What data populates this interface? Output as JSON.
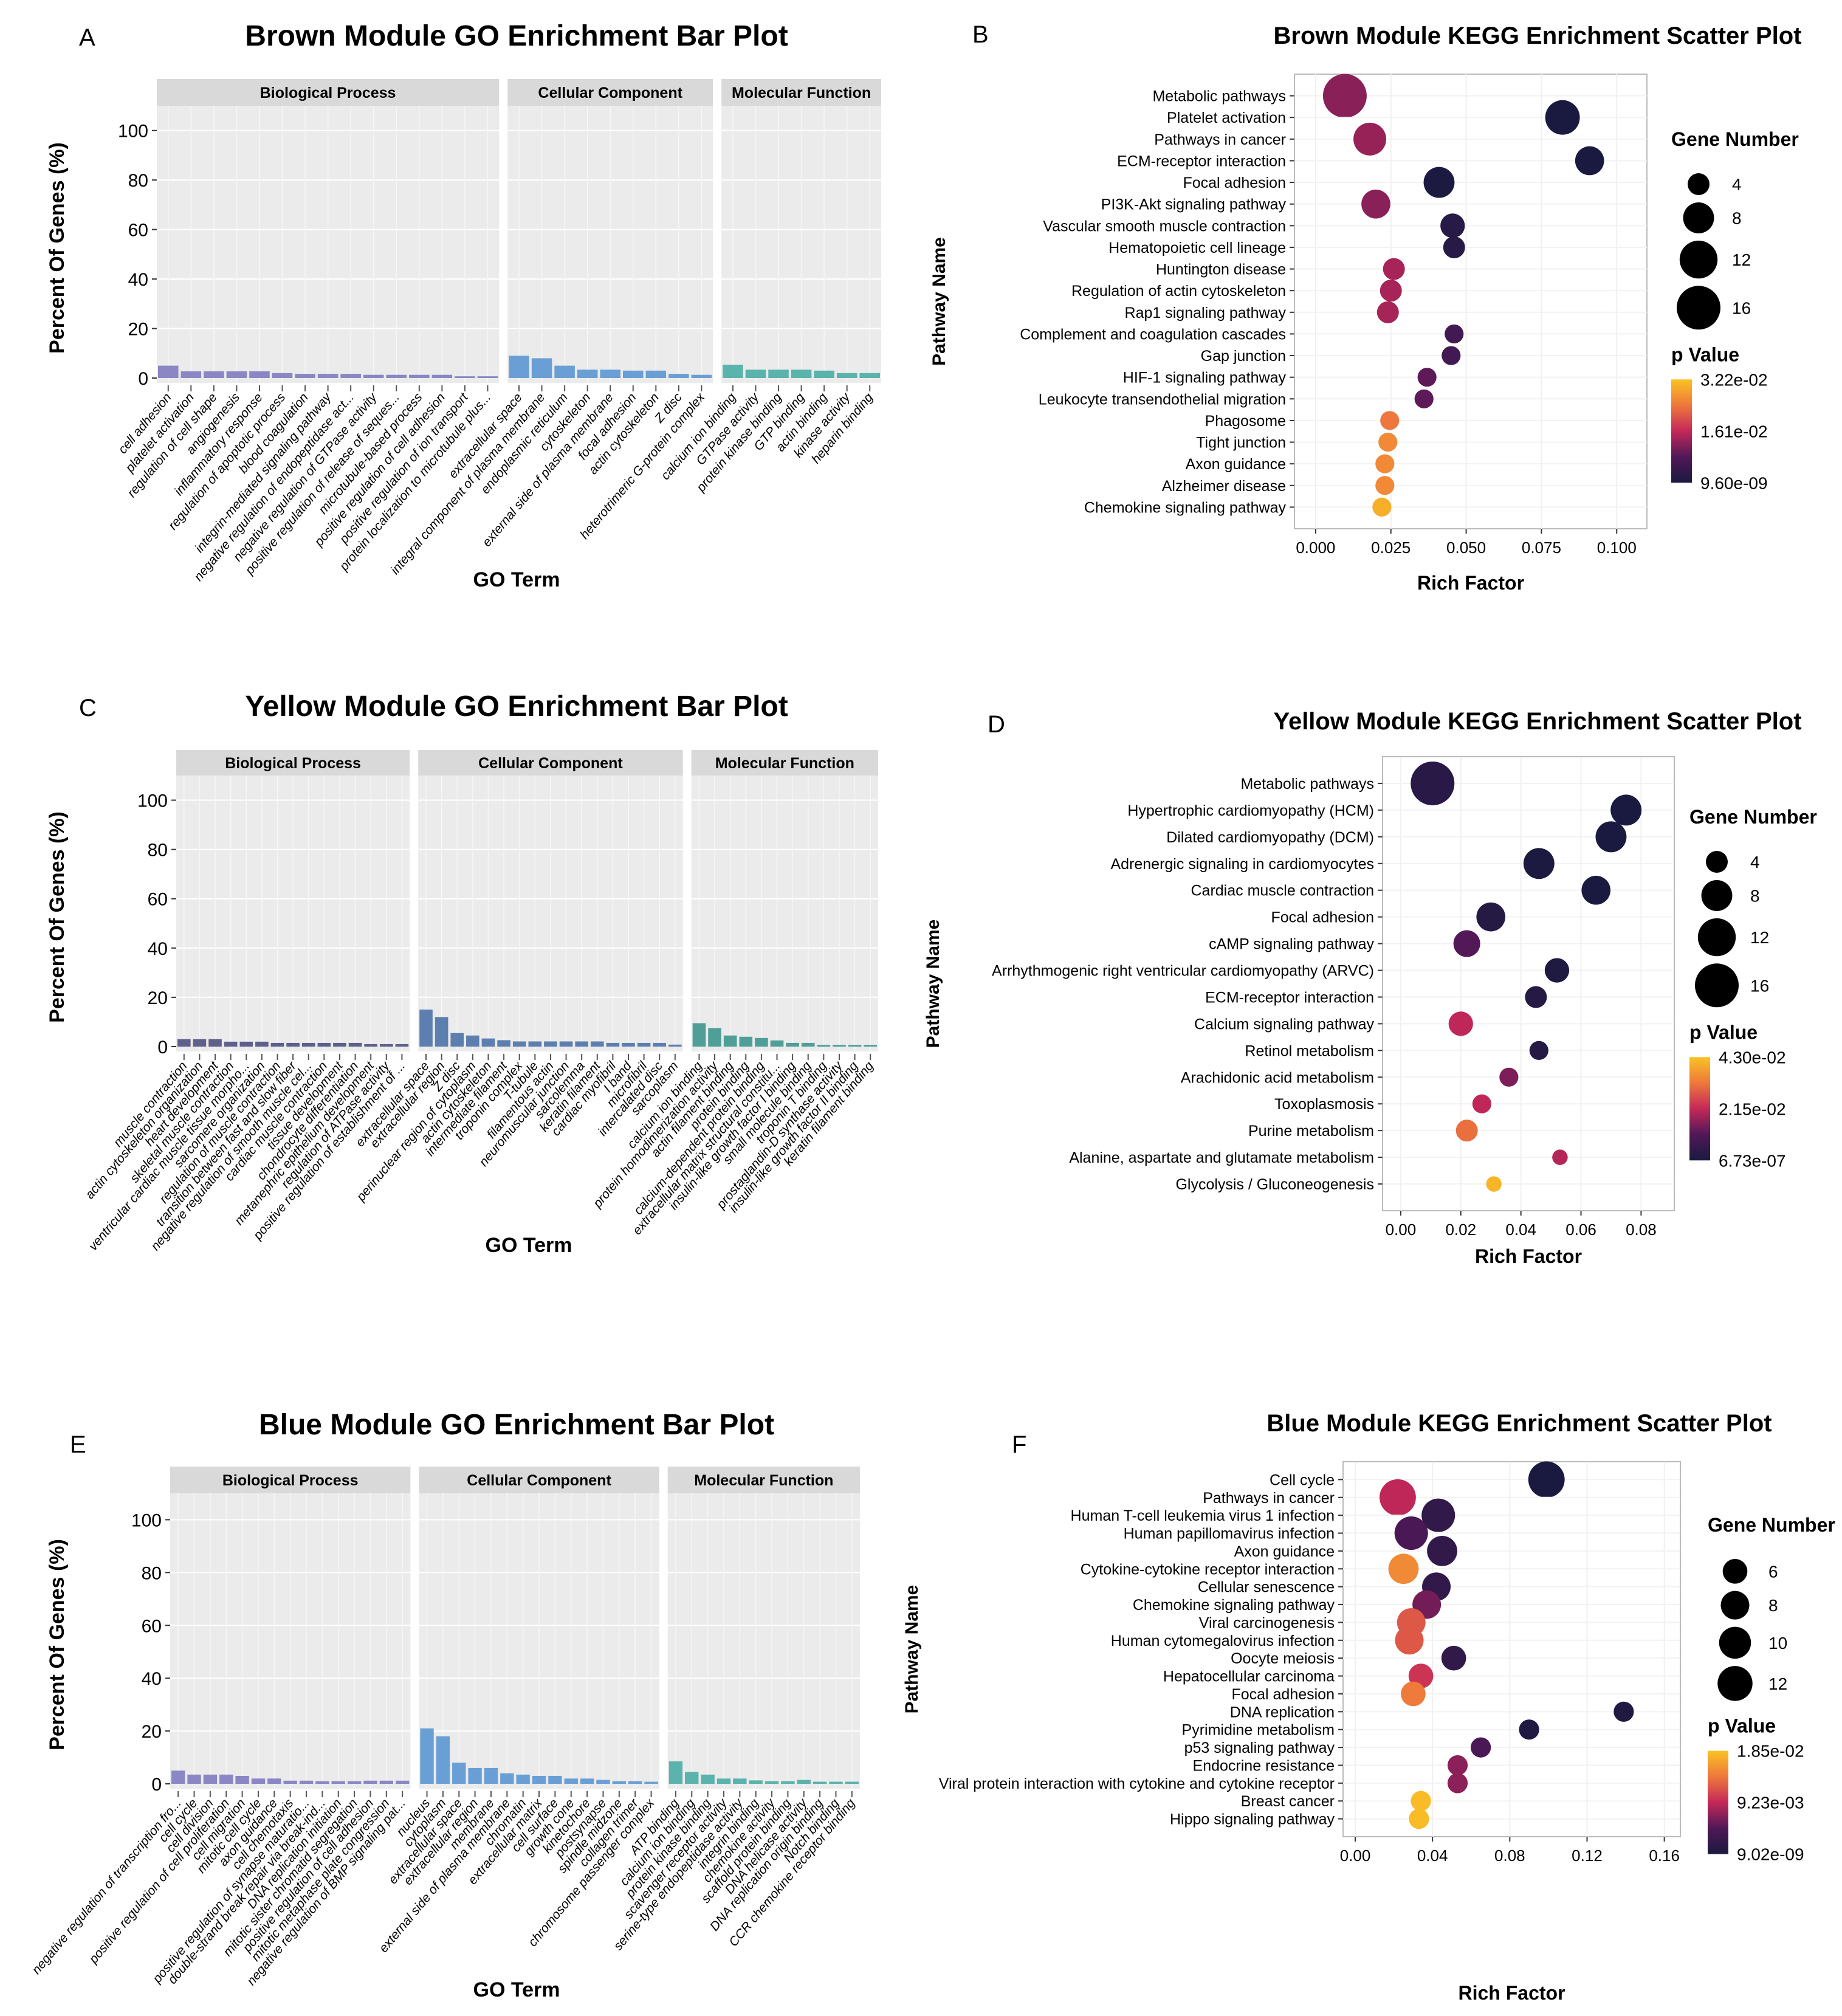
{
  "panel_letters": [
    "A",
    "B",
    "C",
    "D",
    "E",
    "F"
  ],
  "chart_data": [
    {
      "type": "bar",
      "letter": "A",
      "title": "Brown Module GO Enrichment Bar Plot",
      "xlabel": "GO Term",
      "ylabel": "Percent Of Genes (%)",
      "ylim": [
        0,
        110
      ],
      "yticks": [
        0,
        20,
        40,
        60,
        80,
        100
      ],
      "grid": true,
      "facets": [
        {
          "name": "Biological Process",
          "color": "#8b86c4",
          "categories": [
            "cell adhesion",
            "platelet activation",
            "regulation of cell shape",
            "angiogenesis",
            "inflammatory response",
            "regulation of apoptotic process",
            "blood coagulation",
            "integrin-mediated signaling pathway",
            "negative regulation of endopeptidase act...",
            "negative regulation of GTPase activity",
            "positive regulation of release of seques...",
            "microtubule-based process",
            "positive regulation of cell adhesion",
            "positive regulation of ion transport",
            "protein localization to microtubule plus..."
          ],
          "values": [
            5.0,
            2.7,
            2.7,
            2.7,
            2.7,
            2.0,
            1.7,
            1.7,
            1.7,
            1.3,
            1.3,
            1.3,
            1.3,
            0.7,
            0.7
          ]
        },
        {
          "name": "Cellular Component",
          "color": "#6a9fd6",
          "categories": [
            "extracellular space",
            "integral component of plasma membrane",
            "endoplasmic reticulum",
            "cytoskeleton",
            "external side of plasma membrane",
            "focal adhesion",
            "actin cytoskeleton",
            "Z disc",
            "heterotrimeric G-protein complex"
          ],
          "values": [
            9.0,
            8.0,
            5.0,
            3.4,
            3.4,
            3.0,
            3.0,
            1.7,
            1.3
          ]
        },
        {
          "name": "Molecular Function",
          "color": "#5ab3ac",
          "categories": [
            "calcium ion binding",
            "GTPase activity",
            "protein kinase binding",
            "GTP binding",
            "actin binding",
            "kinase activity",
            "heparin binding"
          ],
          "values": [
            5.4,
            3.4,
            3.4,
            3.4,
            3.0,
            2.0,
            2.0
          ]
        }
      ]
    },
    {
      "type": "scatter",
      "letter": "B",
      "title": "Brown Module KEGG Enrichment Scatter Plot",
      "xlabel": "Rich Factor",
      "ylabel": "Pathway Name",
      "xlim": [
        -0.003,
        0.106
      ],
      "xticks": [
        "0.000",
        "0.025",
        "0.050",
        "0.075",
        "0.100"
      ],
      "size_legend_title": "Gene Number",
      "size_legend": [
        4,
        8,
        12,
        16
      ],
      "color_legend_title": "p Value",
      "color_legend": [
        "3.22e-02",
        "1.61e-02",
        "9.60e-09"
      ],
      "prange": [
        9.6e-09,
        0.0322
      ],
      "points": [
        {
          "pathway": "Metabolic pathways",
          "rich": 0.0097,
          "count": 16,
          "p": 0.012
        },
        {
          "pathway": "Platelet activation",
          "rich": 0.082,
          "count": 10,
          "p": 1e-06
        },
        {
          "pathway": "Pathways in cancer",
          "rich": 0.018,
          "count": 9,
          "p": 0.013
        },
        {
          "pathway": "ECM-receptor interaction",
          "rich": 0.091,
          "count": 7,
          "p": 1e-05
        },
        {
          "pathway": "Focal adhesion",
          "rich": 0.041,
          "count": 8,
          "p": 0.0005
        },
        {
          "pathway": "PI3K-Akt signaling pathway",
          "rich": 0.02,
          "count": 7,
          "p": 0.012
        },
        {
          "pathway": "Vascular smooth muscle contraction",
          "rich": 0.0455,
          "count": 5,
          "p": 0.002
        },
        {
          "pathway": "Hematopoietic cell lineage",
          "rich": 0.046,
          "count": 4,
          "p": 0.002
        },
        {
          "pathway": "Huntington disease",
          "rich": 0.026,
          "count": 4,
          "p": 0.014
        },
        {
          "pathway": "Regulation of actin cytoskeleton",
          "rich": 0.025,
          "count": 4,
          "p": 0.014
        },
        {
          "pathway": "Rap1 signaling pathway",
          "rich": 0.024,
          "count": 4,
          "p": 0.014
        },
        {
          "pathway": "Complement and coagulation cascades",
          "rich": 0.046,
          "count": 3,
          "p": 0.006
        },
        {
          "pathway": "Gap junction",
          "rich": 0.045,
          "count": 3,
          "p": 0.006
        },
        {
          "pathway": "HIF-1 signaling pathway",
          "rich": 0.037,
          "count": 3,
          "p": 0.009
        },
        {
          "pathway": "Leukocyte transendothelial migration",
          "rich": 0.036,
          "count": 3,
          "p": 0.009
        },
        {
          "pathway": "Phagosome",
          "rich": 0.0246,
          "count": 3,
          "p": 0.024
        },
        {
          "pathway": "Tight junction",
          "rich": 0.024,
          "count": 3,
          "p": 0.026
        },
        {
          "pathway": "Axon guidance",
          "rich": 0.023,
          "count": 3,
          "p": 0.026
        },
        {
          "pathway": "Alzheimer disease",
          "rich": 0.023,
          "count": 3,
          "p": 0.026
        },
        {
          "pathway": "Chemokine signaling pathway",
          "rich": 0.022,
          "count": 3,
          "p": 0.03
        }
      ]
    },
    {
      "type": "bar",
      "letter": "C",
      "title": "Yellow Module GO Enrichment Bar Plot",
      "xlabel": "GO Term",
      "ylabel": "Percent Of Genes (%)",
      "ylim": [
        0,
        110
      ],
      "yticks": [
        0,
        20,
        40,
        60,
        80,
        100
      ],
      "grid": true,
      "facets": [
        {
          "name": "Biological Process",
          "color": "#5f5f8c",
          "categories": [
            "muscle contraction",
            "actin cytoskeleton organization",
            "heart development",
            "skeletal muscle contraction",
            "ventricular cardiac muscle tissue morpho...",
            "sarcomere organization",
            "regulation of muscle contraction",
            "transition between fast and slow fiber",
            "negative regulation of smooth muscle cel...",
            "cardiac muscle contraction",
            "tissue development",
            "chondrocyte differentiation",
            "metanephric epithelium development",
            "regulation of ATPase activity",
            "positive regulation of establishment of ..."
          ],
          "values": [
            3.0,
            3.0,
            3.0,
            2.0,
            2.0,
            2.0,
            1.5,
            1.5,
            1.5,
            1.5,
            1.5,
            1.5,
            1.0,
            1.0,
            1.0
          ]
        },
        {
          "name": "Cellular Component",
          "color": "#5d7fb0",
          "categories": [
            "extracellular space",
            "extracellular region",
            "Z disc",
            "perinuclear region of cytoplasm",
            "actin cytoskeleton",
            "intermediate filament",
            "troponin complex",
            "T-tubule",
            "filamentous actin",
            "neuromuscular junction",
            "sarcolemma",
            "keratin filament",
            "cardiac myofibril",
            "I band",
            "microfibril",
            "intercalated disc",
            "sarcoplasm"
          ],
          "values": [
            15.0,
            12.0,
            5.5,
            4.5,
            3.3,
            2.6,
            2.1,
            2.1,
            2.1,
            2.1,
            2.1,
            2.1,
            1.5,
            1.5,
            1.5,
            1.5,
            0.8
          ]
        },
        {
          "name": "Molecular Function",
          "color": "#4f9f98",
          "categories": [
            "calcium ion binding",
            "protein homodimerization activity",
            "actin filament binding",
            "protein binding",
            "calcium-dependent protein binding",
            "extracellular matrix structural constitu...",
            "insulin-like growth factor I binding",
            "small molecule binding",
            "troponin T binding",
            "prostaglandin-D synthase activity",
            "insulin-like growth factor II binding",
            "keratin filament binding"
          ],
          "values": [
            9.5,
            7.5,
            4.5,
            4.0,
            3.5,
            2.5,
            1.5,
            1.5,
            0.7,
            0.7,
            0.7,
            0.7
          ]
        }
      ]
    },
    {
      "type": "scatter",
      "letter": "D",
      "title": "Yellow Module KEGG Enrichment Scatter Plot",
      "xlabel": "Rich Factor",
      "ylabel": "Pathway Name",
      "xlim": [
        -0.002,
        0.087
      ],
      "xticks": [
        "0.00",
        "0.02",
        "0.04",
        "0.06",
        "0.08"
      ],
      "size_legend_title": "Gene Number",
      "size_legend": [
        4,
        8,
        12,
        16
      ],
      "color_legend_title": "p Value",
      "color_legend": [
        "4.30e-02",
        "2.15e-02",
        "6.73e-07"
      ],
      "prange": [
        6.73e-07,
        0.043
      ],
      "points": [
        {
          "pathway": "Metabolic pathways",
          "rich": 0.0106,
          "count": 16,
          "p": 0.003
        },
        {
          "pathway": "Hypertrophic cardiomyopathy (HCM)",
          "rich": 0.075,
          "count": 8,
          "p": 1e-05
        },
        {
          "pathway": "Dilated cardiomyopathy (DCM)",
          "rich": 0.07,
          "count": 8,
          "p": 1e-05
        },
        {
          "pathway": "Adrenergic signaling in cardiomyocytes",
          "rich": 0.046,
          "count": 8,
          "p": 0.0005
        },
        {
          "pathway": "Cardiac muscle contraction",
          "rich": 0.065,
          "count": 7,
          "p": 0.0001
        },
        {
          "pathway": "Focal adhesion",
          "rich": 0.03,
          "count": 7,
          "p": 0.002
        },
        {
          "pathway": "cAMP signaling pathway",
          "rich": 0.022,
          "count": 6,
          "p": 0.011
        },
        {
          "pathway": "Arrhythmogenic right ventricular cardiomyopathy (ARVC)",
          "rich": 0.052,
          "count": 5,
          "p": 0.0008
        },
        {
          "pathway": "ECM-receptor interaction",
          "rich": 0.045,
          "count": 4,
          "p": 0.002
        },
        {
          "pathway": "Calcium signaling pathway",
          "rich": 0.02,
          "count": 5,
          "p": 0.021
        },
        {
          "pathway": "Retinol metabolism",
          "rich": 0.046,
          "count": 3,
          "p": 0.002
        },
        {
          "pathway": "Arachidonic acid metabolism",
          "rich": 0.036,
          "count": 3,
          "p": 0.015
        },
        {
          "pathway": "Toxoplasmosis",
          "rich": 0.027,
          "count": 3,
          "p": 0.021
        },
        {
          "pathway": "Purine metabolism",
          "rich": 0.022,
          "count": 4,
          "p": 0.031
        },
        {
          "pathway": "Alanine, aspartate and glutamate metabolism",
          "rich": 0.053,
          "count": 2,
          "p": 0.02
        },
        {
          "pathway": "Glycolysis / Gluconeogenesis",
          "rich": 0.031,
          "count": 2,
          "p": 0.041
        }
      ]
    },
    {
      "type": "bar",
      "letter": "E",
      "title": "Blue Module GO Enrichment Bar Plot",
      "xlabel": "GO Term",
      "ylabel": "Percent Of Genes (%)",
      "ylim": [
        0,
        110
      ],
      "yticks": [
        0,
        20,
        40,
        60,
        80,
        100
      ],
      "grid": true,
      "facets": [
        {
          "name": "Biological Process",
          "color": "#8b86c4",
          "categories": [
            "negative regulation of transcription fro...",
            "cell cycle",
            "cell division",
            "positive regulation of cell proliferation",
            "cell migration",
            "mitotic cell cycle",
            "axon guidance",
            "cell chemotaxis",
            "positive regulation of synapse maturatio...",
            "double-strand break repair via break-ind...",
            "DNA replication initiation",
            "mitotic sister chromatid segregation",
            "positive regulation of cell adhesion",
            "mitotic metaphase plate congression",
            "negative regulation of BMP signaling pat..."
          ],
          "values": [
            5.0,
            3.5,
            3.5,
            3.5,
            3.0,
            2.0,
            2.0,
            1.2,
            1.2,
            1.0,
            1.0,
            1.0,
            1.2,
            1.2,
            1.2
          ]
        },
        {
          "name": "Cellular Component",
          "color": "#6a9fd6",
          "categories": [
            "nucleus",
            "cytoplasm",
            "extracellular space",
            "extracellular region",
            "membrane",
            "external side of plasma membrane",
            "chromatin",
            "extracellular matrix",
            "cell surface",
            "growth cone",
            "kinetochore",
            "postsynapse",
            "spindle midzone",
            "collagen trimer",
            "chromosome passenger complex"
          ],
          "values": [
            21.0,
            18.0,
            8.0,
            6.0,
            6.0,
            4.0,
            3.5,
            3.0,
            3.0,
            2.0,
            2.0,
            1.5,
            1.0,
            1.0,
            0.8
          ]
        },
        {
          "name": "Molecular Function",
          "color": "#5ab3ac",
          "categories": [
            "ATP binding",
            "calcium ion binding",
            "protein kinase binding",
            "scavenger receptor activity",
            "serine-type endopeptidase activity",
            "integrin binding",
            "chemokine activity",
            "scaffold protein binding",
            "DNA helicase activity",
            "DNA replication origin binding",
            "Notch binding",
            "CCR chemokine receptor binding"
          ],
          "values": [
            8.5,
            4.5,
            3.5,
            2.0,
            2.0,
            1.3,
            1.0,
            1.0,
            1.5,
            0.8,
            0.8,
            0.8
          ]
        }
      ]
    },
    {
      "type": "scatter",
      "letter": "F",
      "title": "Blue Module KEGG Enrichment Scatter Plot",
      "xlabel": "Rich Factor",
      "ylabel": "Pathway Name",
      "xlim": [
        0,
        0.162
      ],
      "xticks": [
        "0.00",
        "0.04",
        "0.08",
        "0.12",
        "0.16"
      ],
      "size_legend_title": "Gene Number",
      "size_legend": [
        6,
        8,
        10,
        12
      ],
      "color_legend_title": "p Value",
      "color_legend": [
        "1.85e-02",
        "9.23e-03",
        "9.02e-09"
      ],
      "prange": [
        9.02e-09,
        0.0185
      ],
      "points": [
        {
          "pathway": "Cell cycle",
          "rich": 0.099,
          "count": 13,
          "p": 1e-05
        },
        {
          "pathway": "Pathways in cancer",
          "rich": 0.022,
          "count": 13,
          "p": 0.009
        },
        {
          "pathway": "Human T-cell leukemia virus 1 infection",
          "rich": 0.043,
          "count": 11,
          "p": 0.002
        },
        {
          "pathway": "Human papillomavirus infection",
          "rich": 0.029,
          "count": 11,
          "p": 0.004
        },
        {
          "pathway": "Axon guidance",
          "rich": 0.045,
          "count": 9,
          "p": 0.002
        },
        {
          "pathway": "Cytokine-cytokine receptor interaction",
          "rich": 0.025,
          "count": 9,
          "p": 0.015
        },
        {
          "pathway": "Cellular senescence",
          "rich": 0.042,
          "count": 8,
          "p": 0.002
        },
        {
          "pathway": "Chemokine signaling pathway",
          "rich": 0.037,
          "count": 8,
          "p": 0.006
        },
        {
          "pathway": "Viral carcinogenesis",
          "rich": 0.029,
          "count": 8,
          "p": 0.012
        },
        {
          "pathway": "Human cytomegalovirus infection",
          "rich": 0.028,
          "count": 8,
          "p": 0.012
        },
        {
          "pathway": "Oocyte meiosis",
          "rich": 0.051,
          "count": 6,
          "p": 0.002
        },
        {
          "pathway": "Hepatocellular carcinoma",
          "rich": 0.034,
          "count": 6,
          "p": 0.01
        },
        {
          "pathway": "Focal adhesion",
          "rich": 0.03,
          "count": 6,
          "p": 0.014
        },
        {
          "pathway": "DNA replication",
          "rich": 0.139,
          "count": 4,
          "p": 0.0005
        },
        {
          "pathway": "Pyrimidine metabolism",
          "rich": 0.09,
          "count": 4,
          "p": 0.0005
        },
        {
          "pathway": "p53 signaling pathway",
          "rich": 0.065,
          "count": 4,
          "p": 0.004
        },
        {
          "pathway": "Endocrine resistance",
          "rich": 0.053,
          "count": 4,
          "p": 0.007
        },
        {
          "pathway": "Viral protein interaction with cytokine and cytokine receptor",
          "rich": 0.053,
          "count": 4,
          "p": 0.007
        },
        {
          "pathway": "Breast cancer",
          "rich": 0.034,
          "count": 4,
          "p": 0.018
        },
        {
          "pathway": "Hippo signaling pathway",
          "rich": 0.033,
          "count": 4,
          "p": 0.018
        }
      ]
    }
  ]
}
